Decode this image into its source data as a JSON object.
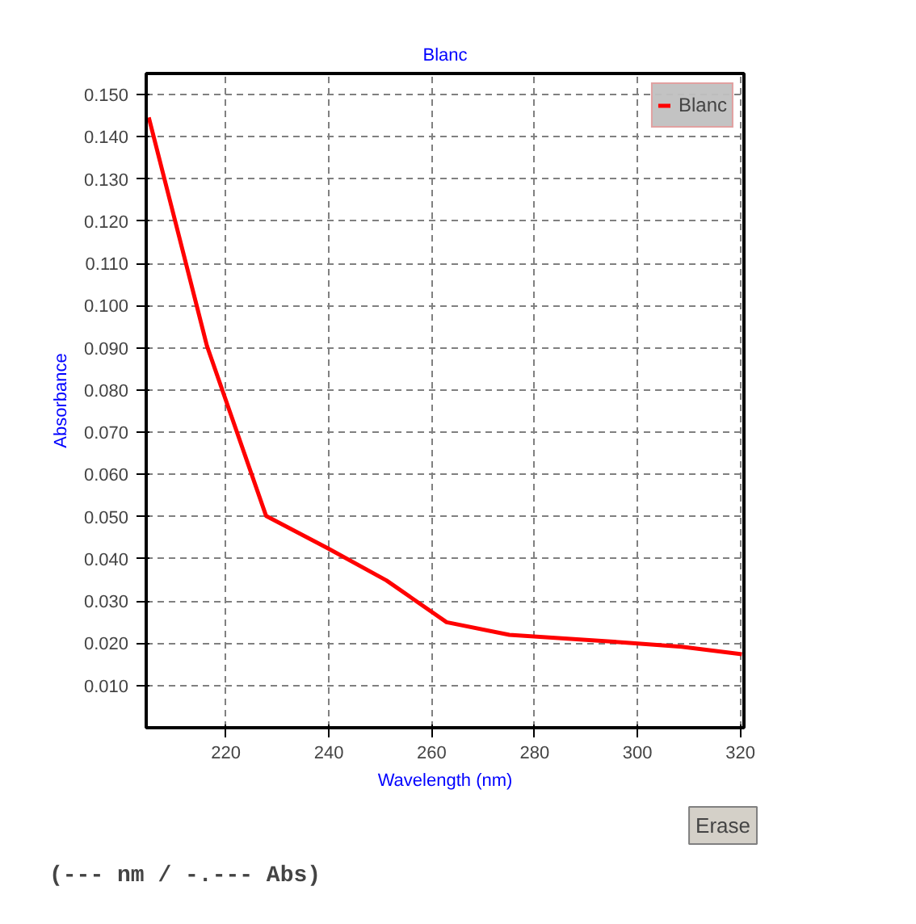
{
  "chart_data": {
    "type": "line",
    "title": "Blanc",
    "xlabel": "Wavelength (nm)",
    "ylabel": "Absorbance",
    "x": [
      205.0,
      216.3,
      227.8,
      240.0,
      251.2,
      262.9,
      275.1,
      285.2,
      297.4,
      308.6,
      320.3
    ],
    "series": [
      {
        "name": "Blanc",
        "color": "#ff0000",
        "values": [
          0.1446,
          0.0905,
          0.0502,
          0.0424,
          0.0349,
          0.025,
          0.022,
          0.0212,
          0.0202,
          0.0192,
          0.0174
        ]
      }
    ],
    "xlim": [
      204.5,
      320.7
    ],
    "xticks": [
      220,
      240,
      260,
      280,
      300,
      320
    ],
    "ylim": [
      0,
      0.155
    ],
    "yticks": [
      {
        "value": 0.01,
        "label": "0.010"
      },
      {
        "value": 0.02,
        "label": "0.020"
      },
      {
        "value": 0.03,
        "label": "0.030"
      },
      {
        "value": 0.04,
        "label": "0.040"
      },
      {
        "value": 0.05,
        "label": "0.050"
      },
      {
        "value": 0.06,
        "label": "0.060"
      },
      {
        "value": 0.07,
        "label": "0.070"
      },
      {
        "value": 0.08,
        "label": "0.080"
      },
      {
        "value": 0.09,
        "label": "0.090"
      },
      {
        "value": 0.1,
        "label": "0.100"
      },
      {
        "value": 0.11,
        "label": "0.110"
      },
      {
        "value": 0.12,
        "label": "0.120"
      },
      {
        "value": 0.13,
        "label": "0.130"
      },
      {
        "value": 0.14,
        "label": "0.140"
      },
      {
        "value": 0.15,
        "label": "0.150"
      }
    ],
    "grid": true,
    "legend": "top right",
    "marker": "none",
    "line_style": "solid",
    "annotations": [
      "(--- nm / -.--- Abs)",
      "Erase"
    ]
  }
}
